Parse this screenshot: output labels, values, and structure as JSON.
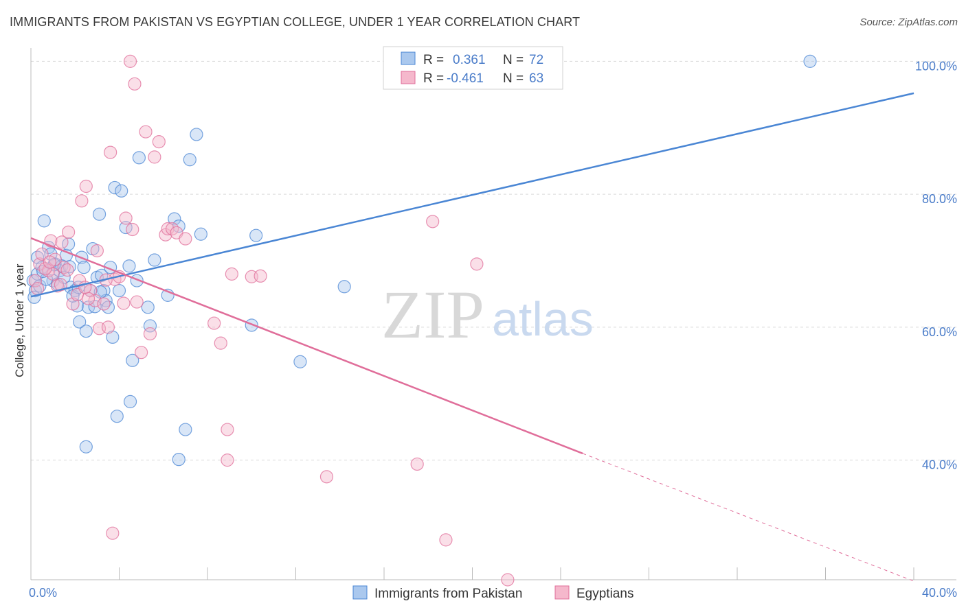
{
  "title": "IMMIGRANTS FROM PAKISTAN VS EGYPTIAN COLLEGE, UNDER 1 YEAR CORRELATION CHART",
  "source": "Source: ZipAtlas.com",
  "watermark": {
    "zip": "ZIP",
    "atlas": "atlas"
  },
  "colors": {
    "blue": "#4a86d4",
    "blue_fill": "#aac8ee",
    "pink": "#e06e9a",
    "pink_fill": "#f5b8cc",
    "grid": "#d9d9d9",
    "axis_text": "#4a7cc9"
  },
  "legend": {
    "rows": [
      {
        "r_label": "R =",
        "r_value": "0.361",
        "n_label": "N =",
        "n_value": "72"
      },
      {
        "r_label": "R =",
        "r_value": "-0.461",
        "n_label": "N =",
        "n_value": "63"
      }
    ]
  },
  "chart_data": {
    "type": "scatter",
    "xlabel": "",
    "ylabel": "College, Under 1 year",
    "xlim": [
      0,
      40
    ],
    "ylim": [
      22,
      102
    ],
    "x_tick_labels": [
      "0.0%",
      "40.0%"
    ],
    "y_ticks": [
      40,
      60,
      80,
      100
    ],
    "y_tick_labels": [
      "40.0%",
      "60.0%",
      "80.0%",
      "100.0%"
    ],
    "grid": true,
    "legend_position": "top-center",
    "series": [
      {
        "name": "Immigrants from Pakistan",
        "color": "#4a86d4",
        "trend": {
          "x0": 0,
          "y0": 64.6,
          "x1": 40,
          "y1": 95.2
        },
        "points": [
          [
            0.1,
            67
          ],
          [
            0.2,
            65.5
          ],
          [
            0.3,
            68
          ],
          [
            0.3,
            70.5
          ],
          [
            0.5,
            69
          ],
          [
            0.6,
            76
          ],
          [
            0.8,
            72
          ],
          [
            0.9,
            71
          ],
          [
            1.0,
            67
          ],
          [
            1.1,
            69.5
          ],
          [
            1.2,
            66.5
          ],
          [
            1.3,
            68.5
          ],
          [
            1.5,
            67.5
          ],
          [
            1.6,
            70.8
          ],
          [
            1.7,
            72.5
          ],
          [
            1.8,
            66
          ],
          [
            2.0,
            65.5
          ],
          [
            2.1,
            63.2
          ],
          [
            2.2,
            60.8
          ],
          [
            2.3,
            70.5
          ],
          [
            2.4,
            69
          ],
          [
            2.5,
            59.4
          ],
          [
            2.6,
            63
          ],
          [
            2.7,
            65.5
          ],
          [
            2.8,
            71.8
          ],
          [
            3.0,
            67.5
          ],
          [
            3.1,
            77
          ],
          [
            3.2,
            67.8
          ],
          [
            3.3,
            65.5
          ],
          [
            3.4,
            64
          ],
          [
            3.5,
            63
          ],
          [
            3.6,
            69
          ],
          [
            3.7,
            58.5
          ],
          [
            3.8,
            81
          ],
          [
            4.0,
            65.5
          ],
          [
            4.1,
            80.5
          ],
          [
            4.3,
            75
          ],
          [
            4.5,
            48.8
          ],
          [
            4.6,
            55
          ],
          [
            4.8,
            67
          ],
          [
            4.9,
            85.5
          ],
          [
            5.3,
            63
          ],
          [
            5.4,
            60.2
          ],
          [
            5.6,
            70.1
          ],
          [
            6.2,
            64.8
          ],
          [
            6.5,
            76.3
          ],
          [
            6.7,
            75.2
          ],
          [
            7.0,
            44.6
          ],
          [
            7.2,
            85.2
          ],
          [
            7.5,
            89
          ],
          [
            7.7,
            74
          ],
          [
            2.5,
            42
          ],
          [
            3.9,
            46.6
          ],
          [
            6.7,
            40.1
          ],
          [
            10.0,
            60.3
          ],
          [
            10.2,
            73.8
          ],
          [
            12.2,
            54.8
          ],
          [
            14.2,
            66.1
          ],
          [
            16.7,
            97
          ],
          [
            35.3,
            100
          ],
          [
            0.4,
            66.2
          ],
          [
            1.4,
            69.2
          ],
          [
            0.7,
            67.2
          ],
          [
            1.9,
            64.7
          ],
          [
            2.9,
            63.1
          ],
          [
            0.15,
            64.5
          ],
          [
            1.05,
            69.4
          ],
          [
            2.15,
            66
          ],
          [
            3.15,
            65.3
          ],
          [
            0.55,
            68.4
          ],
          [
            1.75,
            69.1
          ],
          [
            4.45,
            69.2
          ]
        ]
      },
      {
        "name": "Egyptians",
        "color": "#e06e9a",
        "trend": {
          "x0": 0,
          "y0": 73.4,
          "x1": 25,
          "y1": 41.0
        },
        "trend_dashed_to": {
          "x": 40,
          "y": 21.8
        },
        "points": [
          [
            0.2,
            67
          ],
          [
            0.4,
            69.5
          ],
          [
            0.5,
            71
          ],
          [
            0.8,
            68.5
          ],
          [
            0.9,
            73
          ],
          [
            1.0,
            68
          ],
          [
            1.2,
            66.2
          ],
          [
            1.4,
            72.8
          ],
          [
            1.5,
            69
          ],
          [
            1.7,
            74.3
          ],
          [
            1.9,
            63.5
          ],
          [
            2.1,
            64.9
          ],
          [
            2.2,
            67
          ],
          [
            2.3,
            79
          ],
          [
            2.5,
            81.2
          ],
          [
            2.7,
            65.5
          ],
          [
            2.9,
            64
          ],
          [
            3.0,
            71.5
          ],
          [
            3.1,
            59.8
          ],
          [
            3.3,
            63.5
          ],
          [
            3.5,
            60
          ],
          [
            3.6,
            86.3
          ],
          [
            3.8,
            67.2
          ],
          [
            4.0,
            67.6
          ],
          [
            4.2,
            63.6
          ],
          [
            4.3,
            76.4
          ],
          [
            4.5,
            100
          ],
          [
            4.6,
            74.7
          ],
          [
            4.7,
            96.6
          ],
          [
            4.8,
            63.8
          ],
          [
            5.0,
            56.2
          ],
          [
            5.2,
            89.4
          ],
          [
            5.4,
            59
          ],
          [
            5.6,
            85.6
          ],
          [
            5.8,
            87.9
          ],
          [
            6.1,
            73.9
          ],
          [
            6.2,
            74.8
          ],
          [
            6.4,
            74.8
          ],
          [
            6.6,
            74.2
          ],
          [
            7.0,
            73.3
          ],
          [
            8.3,
            60.6
          ],
          [
            8.6,
            57.6
          ],
          [
            8.9,
            44.6
          ],
          [
            8.9,
            40
          ],
          [
            9.1,
            68
          ],
          [
            10.0,
            67.6
          ],
          [
            10.4,
            67.7
          ],
          [
            3.7,
            29
          ],
          [
            13.4,
            37.5
          ],
          [
            17.5,
            39.4
          ],
          [
            18.2,
            75.9
          ],
          [
            18.8,
            28
          ],
          [
            20.2,
            69.5
          ],
          [
            21.6,
            22
          ],
          [
            0.3,
            65.8
          ],
          [
            1.1,
            70.2
          ],
          [
            2.6,
            64.3
          ],
          [
            0.65,
            68.8
          ],
          [
            1.35,
            66.4
          ],
          [
            2.45,
            66
          ],
          [
            0.85,
            69.8
          ],
          [
            1.65,
            68.6
          ],
          [
            3.4,
            67.1
          ]
        ]
      }
    ]
  },
  "bottom_legend": {
    "items": [
      "Immigrants from Pakistan",
      "Egyptians"
    ]
  }
}
